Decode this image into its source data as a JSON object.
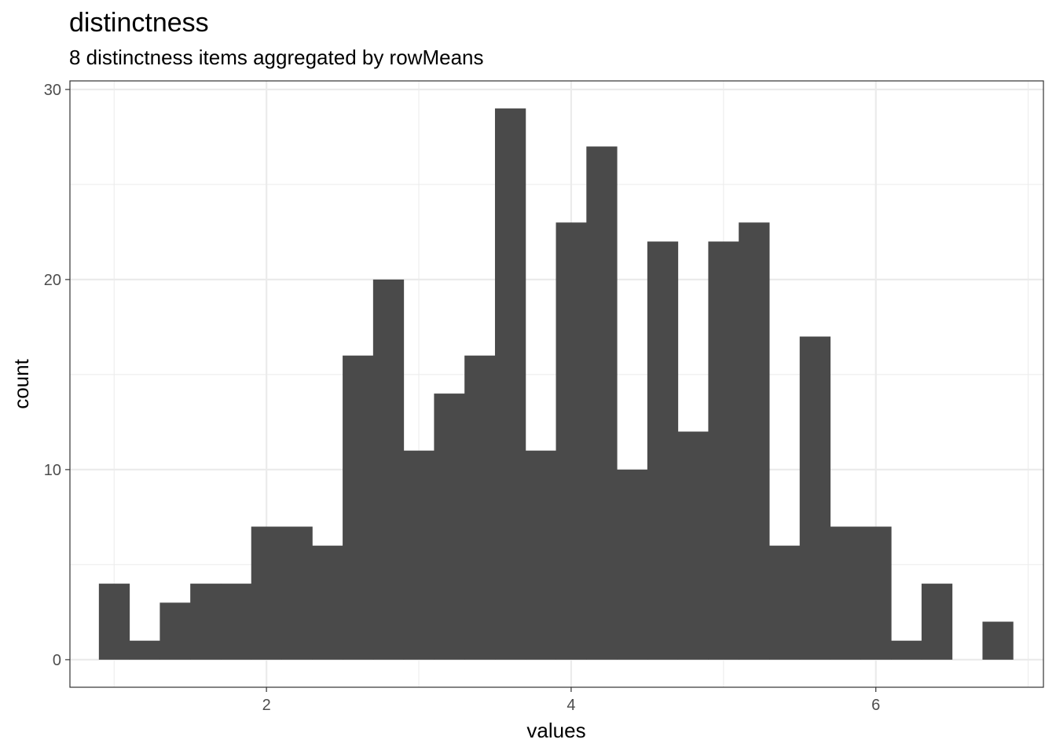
{
  "chart_data": {
    "type": "bar",
    "title": "distinctness",
    "subtitle": "8 distinctness items aggregated by rowMeans",
    "xlabel": "values",
    "ylabel": "count",
    "xlim": [
      0.71,
      7.1
    ],
    "ylim": [
      -1.45,
      30.45
    ],
    "x_ticks": [
      2,
      4,
      6
    ],
    "y_ticks": [
      0,
      10,
      20,
      30
    ],
    "x_minor_grid": [
      1,
      3,
      5,
      7
    ],
    "y_minor_grid": [
      5,
      15,
      25
    ],
    "bin_width": 0.2,
    "bin_start": 0.9,
    "values": [
      4,
      1,
      3,
      4,
      4,
      7,
      7,
      6,
      16,
      20,
      11,
      14,
      16,
      29,
      11,
      23,
      27,
      10,
      22,
      12,
      22,
      23,
      6,
      17,
      7,
      7,
      1,
      4,
      0,
      2
    ],
    "bar_color": "#4a4a4a",
    "grid": true,
    "grid_color": "#ebebeb",
    "panel_border_color": "#333333"
  }
}
